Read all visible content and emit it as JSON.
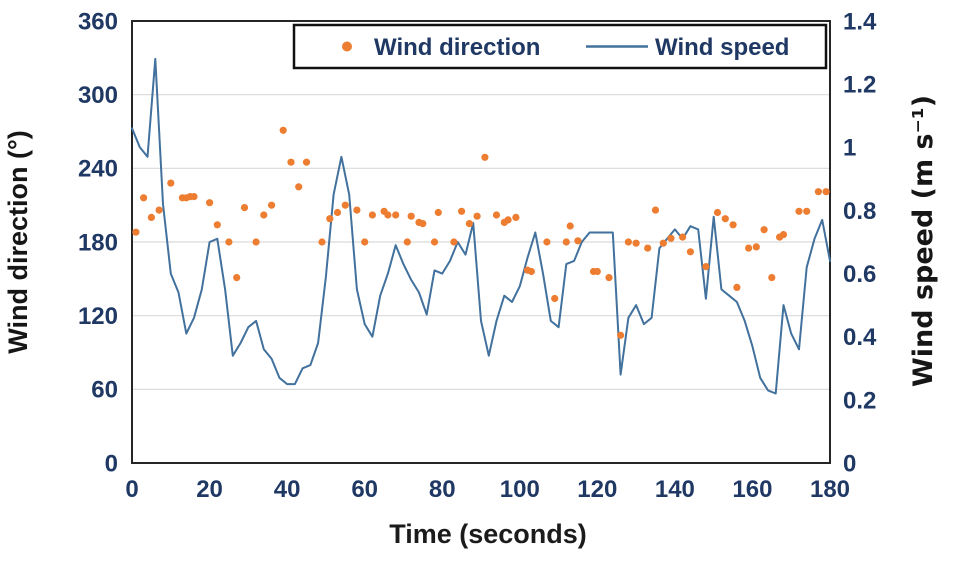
{
  "chart_data": {
    "type": "combo",
    "title": "",
    "background_color": "#FFFFFF",
    "gridlines": "horizontal-left-axis",
    "legend": {
      "position": "top-right-inside",
      "entries": [
        "Wind direction",
        "Wind speed"
      ]
    },
    "x_axis": {
      "label": "Time (seconds)",
      "min": 0,
      "max": 180,
      "tick_step": 20,
      "ticks": [
        "0",
        "20",
        "40",
        "60",
        "80",
        "100",
        "120",
        "140",
        "160",
        "180"
      ]
    },
    "y_left": {
      "label": "Wind direction (°)",
      "min": 0,
      "max": 360,
      "tick_step": 60,
      "ticks": [
        "0",
        "60",
        "120",
        "180",
        "240",
        "300",
        "360"
      ]
    },
    "y_right": {
      "label": "Wind speed (m s⁻¹)",
      "min": 0,
      "max": 1.4,
      "tick_step": 0.2,
      "ticks": [
        "0",
        "0.2",
        "0.4",
        "0.6",
        "0.8",
        "1",
        "1.2",
        "1.4"
      ]
    },
    "series": [
      {
        "name": "Wind direction",
        "type": "scatter",
        "axis": "left",
        "color": "#ED7D31",
        "marker": "dot",
        "points": [
          [
            1,
            188
          ],
          [
            3,
            216
          ],
          [
            5,
            200
          ],
          [
            7,
            206
          ],
          [
            10,
            228
          ],
          [
            13,
            216
          ],
          [
            14,
            216
          ],
          [
            15,
            217
          ],
          [
            16,
            217
          ],
          [
            20,
            212
          ],
          [
            22,
            194
          ],
          [
            25,
            180
          ],
          [
            27,
            151
          ],
          [
            29,
            208
          ],
          [
            32,
            180
          ],
          [
            34,
            202
          ],
          [
            36,
            210
          ],
          [
            39,
            271
          ],
          [
            41,
            245
          ],
          [
            43,
            225
          ],
          [
            45,
            245
          ],
          [
            49,
            180
          ],
          [
            51,
            199
          ],
          [
            53,
            204
          ],
          [
            55,
            210
          ],
          [
            58,
            206
          ],
          [
            60,
            180
          ],
          [
            62,
            202
          ],
          [
            65,
            205
          ],
          [
            66,
            202
          ],
          [
            68,
            202
          ],
          [
            71,
            180
          ],
          [
            72,
            201
          ],
          [
            74,
            196
          ],
          [
            75,
            195
          ],
          [
            78,
            180
          ],
          [
            79,
            204
          ],
          [
            83,
            180
          ],
          [
            85,
            205
          ],
          [
            87,
            195
          ],
          [
            89,
            201
          ],
          [
            91,
            249
          ],
          [
            94,
            202
          ],
          [
            96,
            196
          ],
          [
            97,
            198
          ],
          [
            99,
            200
          ],
          [
            102,
            157
          ],
          [
            103,
            156
          ],
          [
            107,
            180
          ],
          [
            109,
            134
          ],
          [
            112,
            180
          ],
          [
            113,
            193
          ],
          [
            115,
            181
          ],
          [
            119,
            156
          ],
          [
            120,
            156
          ],
          [
            123,
            151
          ],
          [
            126,
            104
          ],
          [
            128,
            180
          ],
          [
            130,
            179
          ],
          [
            133,
            175
          ],
          [
            135,
            206
          ],
          [
            137,
            179
          ],
          [
            139,
            183
          ],
          [
            142,
            184
          ],
          [
            144,
            172
          ],
          [
            148,
            160
          ],
          [
            151,
            204
          ],
          [
            153,
            199
          ],
          [
            155,
            194
          ],
          [
            156,
            143
          ],
          [
            159,
            175
          ],
          [
            161,
            176
          ],
          [
            163,
            190
          ],
          [
            165,
            151
          ],
          [
            167,
            184
          ],
          [
            168,
            186
          ],
          [
            172,
            205
          ],
          [
            174,
            205
          ],
          [
            177,
            221
          ],
          [
            179,
            221
          ]
        ]
      },
      {
        "name": "Wind speed",
        "type": "line",
        "axis": "right",
        "color": "#41719C",
        "x_start": 0,
        "x_step": 2,
        "values": [
          1.06,
          1.0,
          0.97,
          1.28,
          0.82,
          0.6,
          0.54,
          0.41,
          0.46,
          0.55,
          0.7,
          0.71,
          0.55,
          0.34,
          0.38,
          0.43,
          0.45,
          0.36,
          0.33,
          0.27,
          0.25,
          0.25,
          0.3,
          0.31,
          0.38,
          0.59,
          0.85,
          0.97,
          0.85,
          0.55,
          0.44,
          0.4,
          0.53,
          0.6,
          0.69,
          0.63,
          0.58,
          0.54,
          0.47,
          0.61,
          0.6,
          0.64,
          0.7,
          0.66,
          0.76,
          0.45,
          0.34,
          0.45,
          0.53,
          0.51,
          0.56,
          0.65,
          0.73,
          0.6,
          0.45,
          0.43,
          0.63,
          0.64,
          0.7,
          0.73,
          0.73,
          0.73,
          0.73,
          0.28,
          0.46,
          0.5,
          0.44,
          0.46,
          0.68,
          0.71,
          0.74,
          0.71,
          0.75,
          0.74,
          0.52,
          0.78,
          0.55,
          0.53,
          0.51,
          0.45,
          0.37,
          0.27,
          0.23,
          0.22,
          0.5,
          0.41,
          0.36,
          0.62,
          0.71,
          0.77,
          0.64
        ]
      }
    ]
  }
}
